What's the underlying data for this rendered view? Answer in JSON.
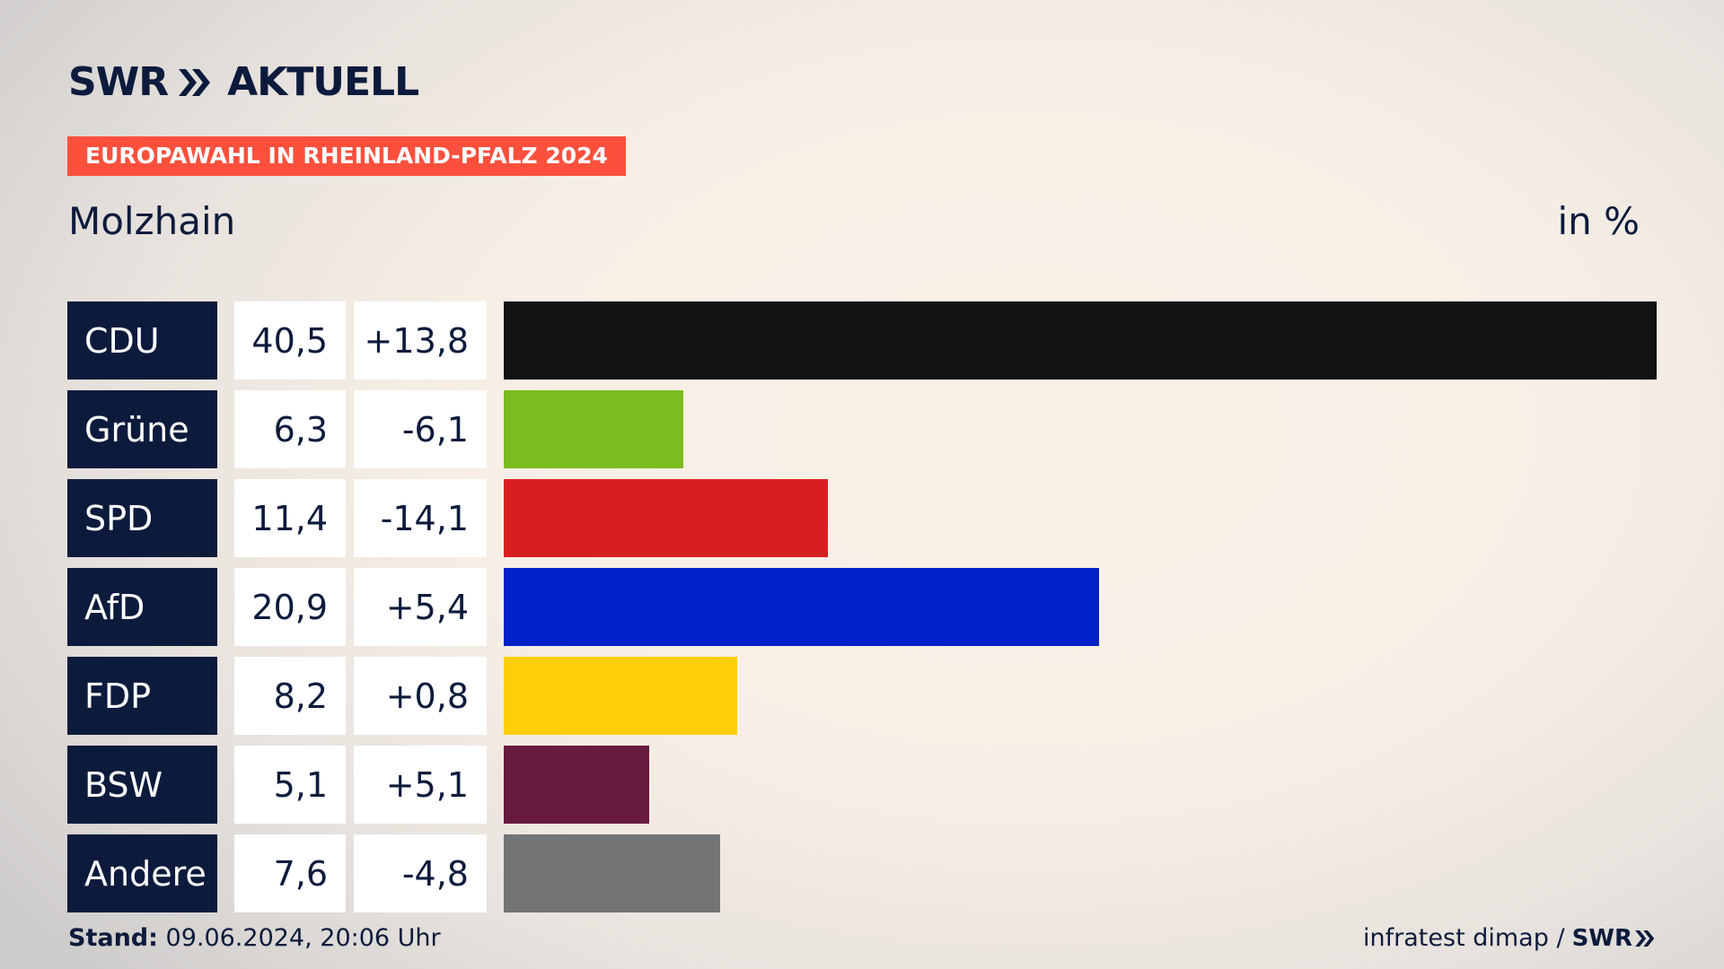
{
  "header": {
    "logo_left": "SWR",
    "logo_right": "AKTUELL",
    "tag": "EUROPAWAHL IN RHEINLAND-PFALZ 2024",
    "place": "Molzhain",
    "unit": "in %"
  },
  "chart_data": {
    "type": "bar",
    "title": "Molzhain",
    "categories": [
      "CDU",
      "Grüne",
      "SPD",
      "AfD",
      "FDP",
      "BSW",
      "Andere"
    ],
    "values": [
      40.5,
      6.3,
      11.4,
      20.9,
      8.2,
      5.1,
      7.6
    ],
    "value_labels": [
      "40,5",
      "6,3",
      "11,4",
      "20,9",
      "8,2",
      "5,1",
      "7,6"
    ],
    "changes": [
      13.8,
      -6.1,
      -14.1,
      5.4,
      0.8,
      5.1,
      -4.8
    ],
    "change_labels": [
      "+13,8",
      "-6,1",
      "-14,1",
      "+5,4",
      "+0,8",
      "+5,1",
      "-4,8"
    ],
    "colors": [
      "#131313",
      "#7abd1f",
      "#d81f1f",
      "#0021c8",
      "#fece08",
      "#681a3f",
      "#737475"
    ],
    "xlim": [
      0,
      40.5
    ],
    "ylabel": "",
    "xlabel": ""
  },
  "footer": {
    "stand_label": "Stand:",
    "stand_value": "09.06.2024, 20:06 Uhr",
    "source": "infratest dimap /",
    "source_logo": "SWR"
  },
  "colors": {
    "navy": "#0c1b3c",
    "tag_red": "#fc503d"
  },
  "icons": {
    "logo_chevrons": "double-chevron-right-icon"
  }
}
